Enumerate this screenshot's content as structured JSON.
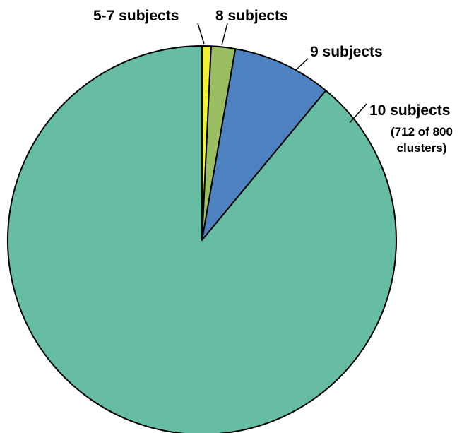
{
  "chart_data": {
    "type": "pie",
    "title": "",
    "total_clusters": 800,
    "slices": [
      {
        "label": "5-7 subjects",
        "value": 6,
        "color": "#F2F230"
      },
      {
        "label": "8 subjects",
        "value": 16,
        "color": "#9BBE63"
      },
      {
        "label": "9 subjects",
        "value": 66,
        "color": "#4E81BF"
      },
      {
        "label": "10 subjects",
        "value": 712,
        "color": "#66BDA3",
        "note_line1": "(712 of 800",
        "note_line2": "clusters)"
      }
    ]
  }
}
